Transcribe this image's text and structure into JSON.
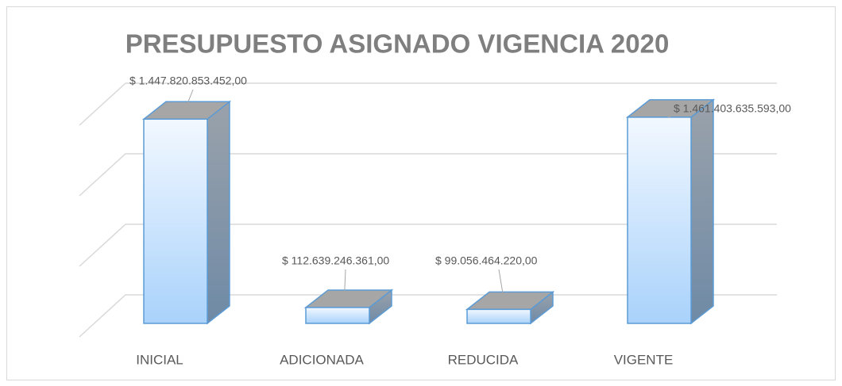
{
  "chart_data": {
    "type": "bar3d",
    "title": "PRESUPUESTO ASIGNADO VIGENCIA 2020",
    "categories": [
      "INICIAL",
      "ADICIONADA",
      "REDUCIDA",
      "VIGENTE"
    ],
    "values": [
      1447820853452,
      112639246361,
      99056464220,
      1461403635593
    ],
    "value_labels": [
      "$ 1.447.820.853.452,00",
      "$ 112.639.246.361,00",
      "$ 99.056.464.220,00",
      "$ 1.461.403.635.593,00"
    ],
    "color": "#a9d2fb",
    "ylim": [
      0,
      1500000000000
    ],
    "yticks": [
      0,
      500000000000,
      1000000000000,
      1500000000000
    ],
    "grid": true
  }
}
